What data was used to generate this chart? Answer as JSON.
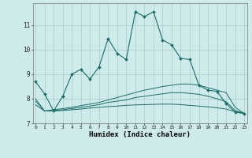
{
  "xlabel": "Humidex (Indice chaleur)",
  "background_color": "#ceeaea",
  "grid_color": "#b0d0d0",
  "line_color": "#1a6e6a",
  "x": [
    0,
    1,
    2,
    3,
    4,
    5,
    6,
    7,
    8,
    9,
    10,
    11,
    12,
    13,
    14,
    15,
    16,
    17,
    18,
    19,
    20,
    21,
    22,
    23
  ],
  "line1": [
    8.7,
    8.2,
    7.5,
    8.1,
    9.0,
    9.2,
    8.8,
    9.3,
    10.45,
    9.85,
    9.6,
    11.55,
    11.35,
    11.55,
    10.4,
    10.2,
    9.65,
    9.6,
    8.55,
    8.35,
    8.3,
    7.8,
    7.45,
    7.4
  ],
  "line2": [
    8.0,
    7.5,
    7.55,
    7.6,
    7.65,
    7.72,
    7.78,
    7.85,
    7.95,
    8.05,
    8.15,
    8.25,
    8.35,
    8.42,
    8.5,
    8.55,
    8.6,
    8.6,
    8.55,
    8.45,
    8.35,
    8.25,
    7.65,
    7.4
  ],
  "line3": [
    7.9,
    7.5,
    7.52,
    7.55,
    7.6,
    7.65,
    7.7,
    7.76,
    7.85,
    7.9,
    7.95,
    8.05,
    8.1,
    8.15,
    8.2,
    8.25,
    8.25,
    8.22,
    8.18,
    8.1,
    8.0,
    7.88,
    7.52,
    7.4
  ],
  "line4": [
    7.75,
    7.5,
    7.5,
    7.52,
    7.55,
    7.58,
    7.62,
    7.65,
    7.68,
    7.7,
    7.73,
    7.75,
    7.76,
    7.77,
    7.78,
    7.78,
    7.76,
    7.73,
    7.7,
    7.67,
    7.63,
    7.58,
    7.47,
    7.4
  ],
  "ylim": [
    7.0,
    11.9
  ],
  "xlim": [
    -0.3,
    23.3
  ],
  "yticks": [
    7,
    8,
    9,
    10,
    11
  ],
  "xticks": [
    0,
    1,
    2,
    3,
    4,
    5,
    6,
    7,
    8,
    9,
    10,
    11,
    12,
    13,
    14,
    15,
    16,
    17,
    18,
    19,
    20,
    21,
    22,
    23
  ]
}
